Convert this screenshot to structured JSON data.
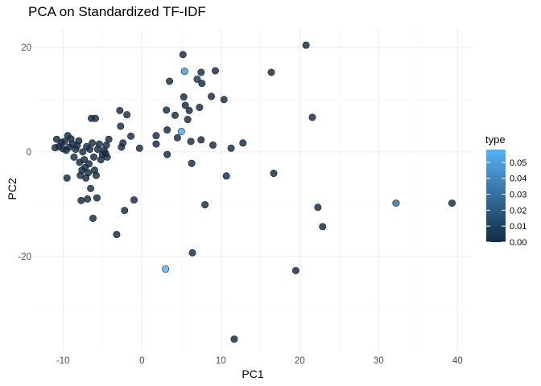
{
  "chart_data": {
    "type": "scatter",
    "title": "PCA on Standardized TF-IDF",
    "xlabel": "PC1",
    "ylabel": "PC2",
    "xlim": [
      -13.7,
      41.8
    ],
    "ylim": [
      -38,
      23.5
    ],
    "x_ticks": [
      -10,
      0,
      10,
      20,
      30,
      40
    ],
    "y_ticks": [
      -20,
      0,
      20
    ],
    "grid": true,
    "legend": {
      "title": "type",
      "position": "right",
      "color_low": "#132B43",
      "color_high": "#56B1F7",
      "range": [
        0,
        0.058
      ],
      "ticks": [
        "0.00",
        "0.01",
        "0.02",
        "0.03",
        "0.04",
        "0.05"
      ]
    },
    "points": [
      {
        "x": -11,
        "y": 0.8,
        "type": 0
      },
      {
        "x": -10.8,
        "y": 2.4,
        "type": 0
      },
      {
        "x": -10.5,
        "y": 1.0,
        "type": 0
      },
      {
        "x": -10.2,
        "y": 1.8,
        "type": 0
      },
      {
        "x": -10.0,
        "y": 0.6,
        "type": 0
      },
      {
        "x": -9.8,
        "y": 2.0,
        "type": 0
      },
      {
        "x": -9.6,
        "y": 0.3,
        "type": 0
      },
      {
        "x": -9.5,
        "y": -5.0,
        "type": 0
      },
      {
        "x": -9.4,
        "y": 3.1,
        "type": 0
      },
      {
        "x": -9.2,
        "y": 0.9,
        "type": 0
      },
      {
        "x": -9.0,
        "y": 2.5,
        "type": 0
      },
      {
        "x": -8.8,
        "y": 1.5,
        "type": 0
      },
      {
        "x": -8.6,
        "y": -1.0,
        "type": 0
      },
      {
        "x": -8.4,
        "y": 0.5,
        "type": 0
      },
      {
        "x": -8.2,
        "y": 1.2,
        "type": 0
      },
      {
        "x": -8.0,
        "y": 2.1,
        "type": 0
      },
      {
        "x": -7.9,
        "y": -2.0,
        "type": 0
      },
      {
        "x": -7.8,
        "y": -4.5,
        "type": 0
      },
      {
        "x": -7.7,
        "y": -9.3,
        "type": 0
      },
      {
        "x": -7.6,
        "y": -3.5,
        "type": 0
      },
      {
        "x": -7.5,
        "y": 0.0,
        "type": 0
      },
      {
        "x": -7.3,
        "y": -1.5,
        "type": 0
      },
      {
        "x": -7.2,
        "y": -3.0,
        "type": 0
      },
      {
        "x": -7.1,
        "y": -5.0,
        "type": 0
      },
      {
        "x": -7.0,
        "y": 1.0,
        "type": 0
      },
      {
        "x": -6.9,
        "y": -9.0,
        "type": 0
      },
      {
        "x": -6.8,
        "y": -4.0,
        "type": 0
      },
      {
        "x": -6.7,
        "y": -2.3,
        "type": 0
      },
      {
        "x": -6.6,
        "y": 0.5,
        "type": 0
      },
      {
        "x": -6.5,
        "y": -7.0,
        "type": 0
      },
      {
        "x": -6.4,
        "y": 6.4,
        "type": 0
      },
      {
        "x": -6.3,
        "y": 1.7,
        "type": 0
      },
      {
        "x": -6.2,
        "y": -12.7,
        "type": 0
      },
      {
        "x": -6.1,
        "y": -1.0,
        "type": 0
      },
      {
        "x": -6.0,
        "y": -3.5,
        "type": 0
      },
      {
        "x": -5.9,
        "y": 6.4,
        "type": 0
      },
      {
        "x": -5.8,
        "y": -4.5,
        "type": 0
      },
      {
        "x": -5.7,
        "y": -8.8,
        "type": 0
      },
      {
        "x": -5.6,
        "y": 0.5,
        "type": 0
      },
      {
        "x": -5.4,
        "y": 1.5,
        "type": 0
      },
      {
        "x": -5.2,
        "y": -1.5,
        "type": 0
      },
      {
        "x": -5.0,
        "y": -0.5,
        "type": 0
      },
      {
        "x": -4.8,
        "y": 0.3,
        "type": 0
      },
      {
        "x": -4.6,
        "y": -0.3,
        "type": 0
      },
      {
        "x": -4.5,
        "y": 1.3,
        "type": 0
      },
      {
        "x": -4.4,
        "y": -1.0,
        "type": 0
      },
      {
        "x": -4.2,
        "y": 2.4,
        "type": 0
      },
      {
        "x": -3.2,
        "y": -15.8,
        "type": 0
      },
      {
        "x": -2.8,
        "y": 7.9,
        "type": 0
      },
      {
        "x": -2.7,
        "y": 4.9,
        "type": 0
      },
      {
        "x": -2.6,
        "y": 0.9,
        "type": 0
      },
      {
        "x": -2.4,
        "y": 1.7,
        "type": 0
      },
      {
        "x": -2.2,
        "y": -11.2,
        "type": 0
      },
      {
        "x": -1.9,
        "y": 7.1,
        "type": 0
      },
      {
        "x": -1.4,
        "y": 3.0,
        "type": 0
      },
      {
        "x": -1.0,
        "y": -9.2,
        "type": 0
      },
      {
        "x": -0.3,
        "y": 0.7,
        "type": 0
      },
      {
        "x": 1.8,
        "y": 3.1,
        "type": 0
      },
      {
        "x": 1.8,
        "y": 1.5,
        "type": 0
      },
      {
        "x": 3.1,
        "y": 8.0,
        "type": 0
      },
      {
        "x": 3.2,
        "y": 4.2,
        "type": 0
      },
      {
        "x": 3.2,
        "y": -0.5,
        "type": 0
      },
      {
        "x": 3.5,
        "y": 13.5,
        "type": 0
      },
      {
        "x": 4.2,
        "y": 7.0,
        "type": 0
      },
      {
        "x": 4.5,
        "y": 2.7,
        "type": 0
      },
      {
        "x": 5.0,
        "y": 3.9,
        "type": 0.055
      },
      {
        "x": 5.2,
        "y": 18.6,
        "type": 0
      },
      {
        "x": 5.3,
        "y": 10.5,
        "type": 0
      },
      {
        "x": 5.4,
        "y": 15.4,
        "type": 0.046
      },
      {
        "x": 5.5,
        "y": 8.9,
        "type": 0
      },
      {
        "x": 5.8,
        "y": 6.2,
        "type": 0
      },
      {
        "x": 6.0,
        "y": 7.9,
        "type": 0
      },
      {
        "x": 6.2,
        "y": 2.0,
        "type": 0
      },
      {
        "x": 6.3,
        "y": -2.2,
        "type": 0
      },
      {
        "x": 6.4,
        "y": -19.3,
        "type": 0
      },
      {
        "x": 7.0,
        "y": 13.9,
        "type": 0.005
      },
      {
        "x": 7.3,
        "y": 8.5,
        "type": 0
      },
      {
        "x": 7.5,
        "y": 15.2,
        "type": 0
      },
      {
        "x": 7.6,
        "y": 13.1,
        "type": 0
      },
      {
        "x": 7.5,
        "y": 2.3,
        "type": 0
      },
      {
        "x": 8.0,
        "y": -10.1,
        "type": 0
      },
      {
        "x": 8.8,
        "y": 10.6,
        "type": 0
      },
      {
        "x": 9.0,
        "y": 1.3,
        "type": 0
      },
      {
        "x": 9.3,
        "y": 15.5,
        "type": 0
      },
      {
        "x": 10.4,
        "y": 10.0,
        "type": 0
      },
      {
        "x": 10.7,
        "y": -4.6,
        "type": 0
      },
      {
        "x": 11.3,
        "y": 0.7,
        "type": 0
      },
      {
        "x": 11.7,
        "y": -35.8,
        "type": 0
      },
      {
        "x": 12.8,
        "y": 1.7,
        "type": 0
      },
      {
        "x": 16.4,
        "y": 15.2,
        "type": 0
      },
      {
        "x": 16.7,
        "y": -4.1,
        "type": 0
      },
      {
        "x": 19.5,
        "y": -22.7,
        "type": 0
      },
      {
        "x": 20.8,
        "y": 20.4,
        "type": 0
      },
      {
        "x": 21.6,
        "y": 6.6,
        "type": 0
      },
      {
        "x": 22.3,
        "y": -10.6,
        "type": 0
      },
      {
        "x": 22.9,
        "y": -14.3,
        "type": 0
      },
      {
        "x": 32.2,
        "y": -9.8,
        "type": 0.03
      },
      {
        "x": 39.3,
        "y": -9.8,
        "type": 0
      },
      {
        "x": 3.0,
        "y": -22.4,
        "type": 0.058
      }
    ]
  }
}
